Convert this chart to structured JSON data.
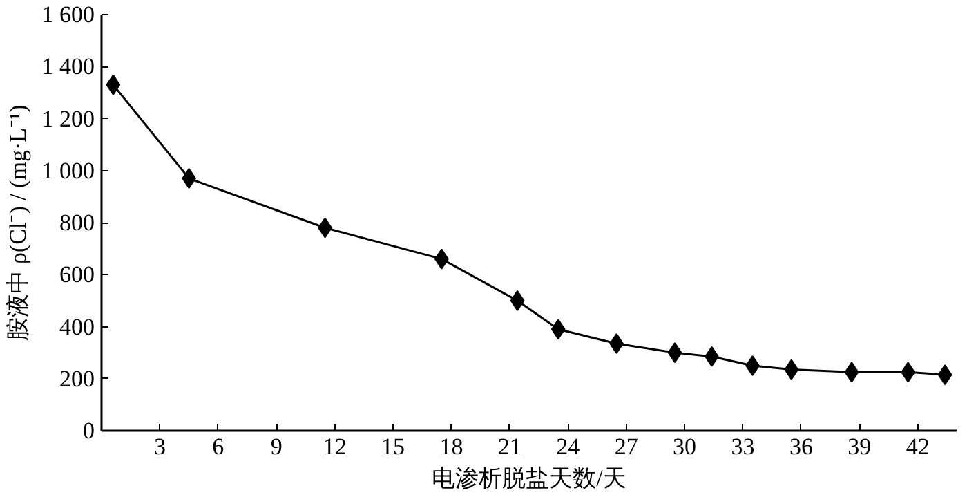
{
  "chart_data": {
    "type": "line",
    "xlabel": "电渗析脱盐天数/天",
    "ylabel": "胺液中 ρ(Cl⁻) / (mg·L⁻¹)",
    "x": [
      0.6,
      4.5,
      11.5,
      17.5,
      21.4,
      23.5,
      26.5,
      29.5,
      31.4,
      33.5,
      35.5,
      38.6,
      41.5,
      43.4
    ],
    "series": [
      {
        "color": "#000000",
        "values": [
          1330,
          970,
          780,
          660,
          500,
          390,
          335,
          300,
          285,
          250,
          235,
          225,
          225,
          215
        ]
      }
    ],
    "xlim": [
      0,
      44
    ],
    "xticks": [
      3,
      6,
      9,
      12,
      15,
      18,
      21,
      24,
      27,
      30,
      33,
      36,
      39,
      42
    ],
    "ylim": [
      0,
      1600
    ],
    "yticks": [
      0,
      200,
      400,
      600,
      800,
      {
        "value": 1000,
        "label": "1 000"
      },
      {
        "value": 1200,
        "label": "1 200"
      },
      {
        "value": 1400,
        "label": "1 400"
      },
      {
        "value": 1600,
        "label": "1 600"
      }
    ],
    "grid": false,
    "marker": "diamond",
    "line_style": "solid"
  }
}
